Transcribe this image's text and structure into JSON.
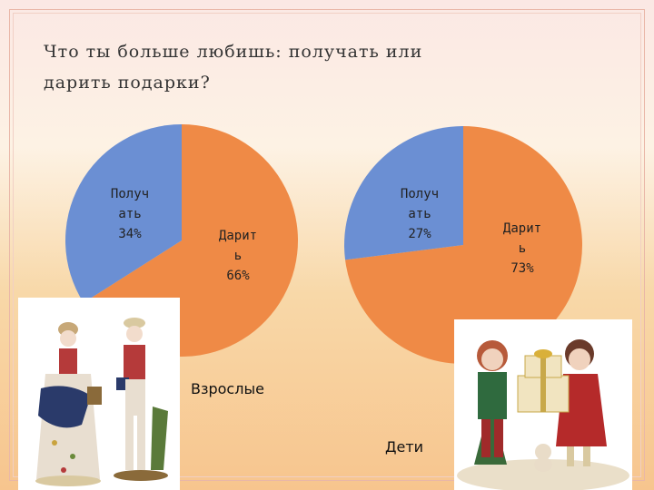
{
  "title": {
    "line1": "Что ты больше любишь: получать или",
    "line2": "дарить подарки?"
  },
  "colors": {
    "give": "#ef8a46",
    "receive": "#6b8fd3"
  },
  "chart_data": [
    {
      "type": "pie",
      "title": "Взрослые",
      "slices": [
        {
          "label": "Дарить",
          "value": 66,
          "label_text": "66%",
          "color": "#ef8a46"
        },
        {
          "label": "Получать",
          "value": 34,
          "label_text": "34%",
          "color": "#6b8fd3"
        }
      ]
    },
    {
      "type": "pie",
      "title": "Дети",
      "slices": [
        {
          "label": "Дарить",
          "value": 73,
          "label_text": "73%",
          "color": "#ef8a46"
        },
        {
          "label": "Получать",
          "value": 27,
          "label_text": "27%",
          "color": "#6b8fd3"
        }
      ]
    }
  ],
  "captions": {
    "adults": "Взрослые",
    "children": "Дети"
  }
}
